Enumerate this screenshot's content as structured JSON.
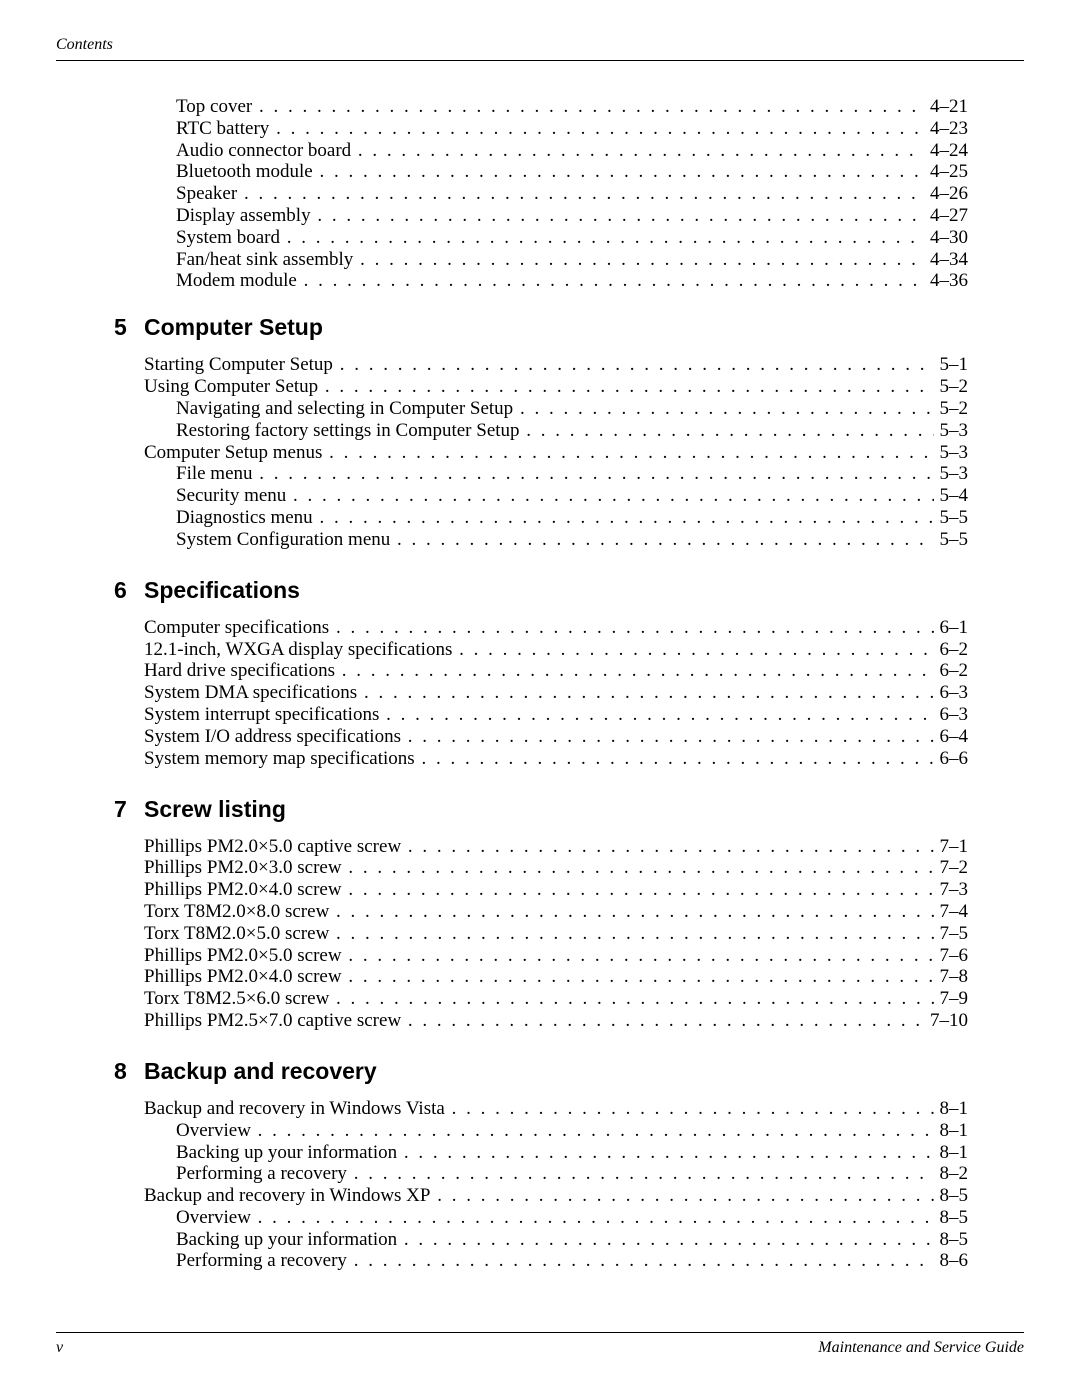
{
  "header": {
    "label": "Contents"
  },
  "footer": {
    "page_num": "v",
    "doc_title": "Maintenance and Service Guide"
  },
  "dots": ". . . . . . . . . . . . . . . . . . . . . . . . . . . . . . . . . . . . . . . . . . . . . . . . . . . . . . . . . . . . . . . . . . . . . . . . . . . . . . . . . . . . . . . . . . . . . . . . . . . . . . . . . . . . . . . . . . . . . . . . . . . . . . . . . . . . . . . . . . . . . . . . . . . . . . . .",
  "pre_entries": [
    {
      "label": "Top cover",
      "page": "4–21",
      "indent": 1
    },
    {
      "label": "RTC battery",
      "page": "4–23",
      "indent": 1
    },
    {
      "label": "Audio connector board",
      "page": "4–24",
      "indent": 1
    },
    {
      "label": "Bluetooth module",
      "page": "4–25",
      "indent": 1
    },
    {
      "label": "Speaker",
      "page": "4–26",
      "indent": 1
    },
    {
      "label": "Display assembly",
      "page": "4–27",
      "indent": 1
    },
    {
      "label": "System board",
      "page": "4–30",
      "indent": 1
    },
    {
      "label": "Fan/heat sink assembly",
      "page": "4–34",
      "indent": 1
    },
    {
      "label": "Modem module",
      "page": "4–36",
      "indent": 1
    }
  ],
  "sections": [
    {
      "num": "5",
      "title": "Computer Setup",
      "entries": [
        {
          "label": "Starting Computer Setup",
          "page": "5–1",
          "indent": 0
        },
        {
          "label": "Using Computer Setup",
          "page": "5–2",
          "indent": 0
        },
        {
          "label": "Navigating and selecting in Computer Setup",
          "page": "5–2",
          "indent": 1
        },
        {
          "label": "Restoring factory settings in Computer Setup",
          "page": "5–3",
          "indent": 1
        },
        {
          "label": "Computer Setup menus",
          "page": "5–3",
          "indent": 0
        },
        {
          "label": "File menu",
          "page": "5–3",
          "indent": 1
        },
        {
          "label": "Security menu",
          "page": "5–4",
          "indent": 1
        },
        {
          "label": "Diagnostics menu",
          "page": "5–5",
          "indent": 1
        },
        {
          "label": "System Configuration menu",
          "page": "5–5",
          "indent": 1
        }
      ]
    },
    {
      "num": "6",
      "title": "Specifications",
      "entries": [
        {
          "label": "Computer specifications",
          "page": "6–1",
          "indent": 0
        },
        {
          "label": "12.1-inch, WXGA display specifications",
          "page": "6–2",
          "indent": 0
        },
        {
          "label": "Hard drive specifications",
          "page": "6–2",
          "indent": 0
        },
        {
          "label": "System DMA specifications",
          "page": "6–3",
          "indent": 0
        },
        {
          "label": "System interrupt specifications",
          "page": "6–3",
          "indent": 0
        },
        {
          "label": "System I/O address specifications",
          "page": "6–4",
          "indent": 0
        },
        {
          "label": "System memory map specifications",
          "page": "6–6",
          "indent": 0
        }
      ]
    },
    {
      "num": "7",
      "title": "Screw listing",
      "entries": [
        {
          "label": "Phillips PM2.0×5.0 captive screw",
          "page": "7–1",
          "indent": 0
        },
        {
          "label": "Phillips PM2.0×3.0 screw",
          "page": "7–2",
          "indent": 0
        },
        {
          "label": "Phillips PM2.0×4.0 screw",
          "page": "7–3",
          "indent": 0
        },
        {
          "label": "Torx T8M2.0×8.0 screw",
          "page": "7–4",
          "indent": 0
        },
        {
          "label": "Torx T8M2.0×5.0 screw",
          "page": "7–5",
          "indent": 0
        },
        {
          "label": "Phillips PM2.0×5.0 screw",
          "page": "7–6",
          "indent": 0
        },
        {
          "label": "Phillips PM2.0×4.0 screw",
          "page": "7–8",
          "indent": 0
        },
        {
          "label": "Torx T8M2.5×6.0 screw",
          "page": "7–9",
          "indent": 0
        },
        {
          "label": "Phillips PM2.5×7.0 captive screw",
          "page": "7–10",
          "indent": 0
        }
      ]
    },
    {
      "num": "8",
      "title": "Backup and recovery",
      "entries": [
        {
          "label": "Backup and recovery in Windows Vista",
          "page": "8–1",
          "indent": 0
        },
        {
          "label": "Overview",
          "page": "8–1",
          "indent": 1
        },
        {
          "label": "Backing up your information",
          "page": "8–1",
          "indent": 1
        },
        {
          "label": "Performing a recovery",
          "page": "8–2",
          "indent": 1
        },
        {
          "label": "Backup and recovery in Windows XP",
          "page": "8–5",
          "indent": 0
        },
        {
          "label": "Overview",
          "page": "8–5",
          "indent": 1
        },
        {
          "label": "Backing up your information",
          "page": "8–5",
          "indent": 1
        },
        {
          "label": "Performing a recovery",
          "page": "8–6",
          "indent": 1
        }
      ]
    }
  ]
}
